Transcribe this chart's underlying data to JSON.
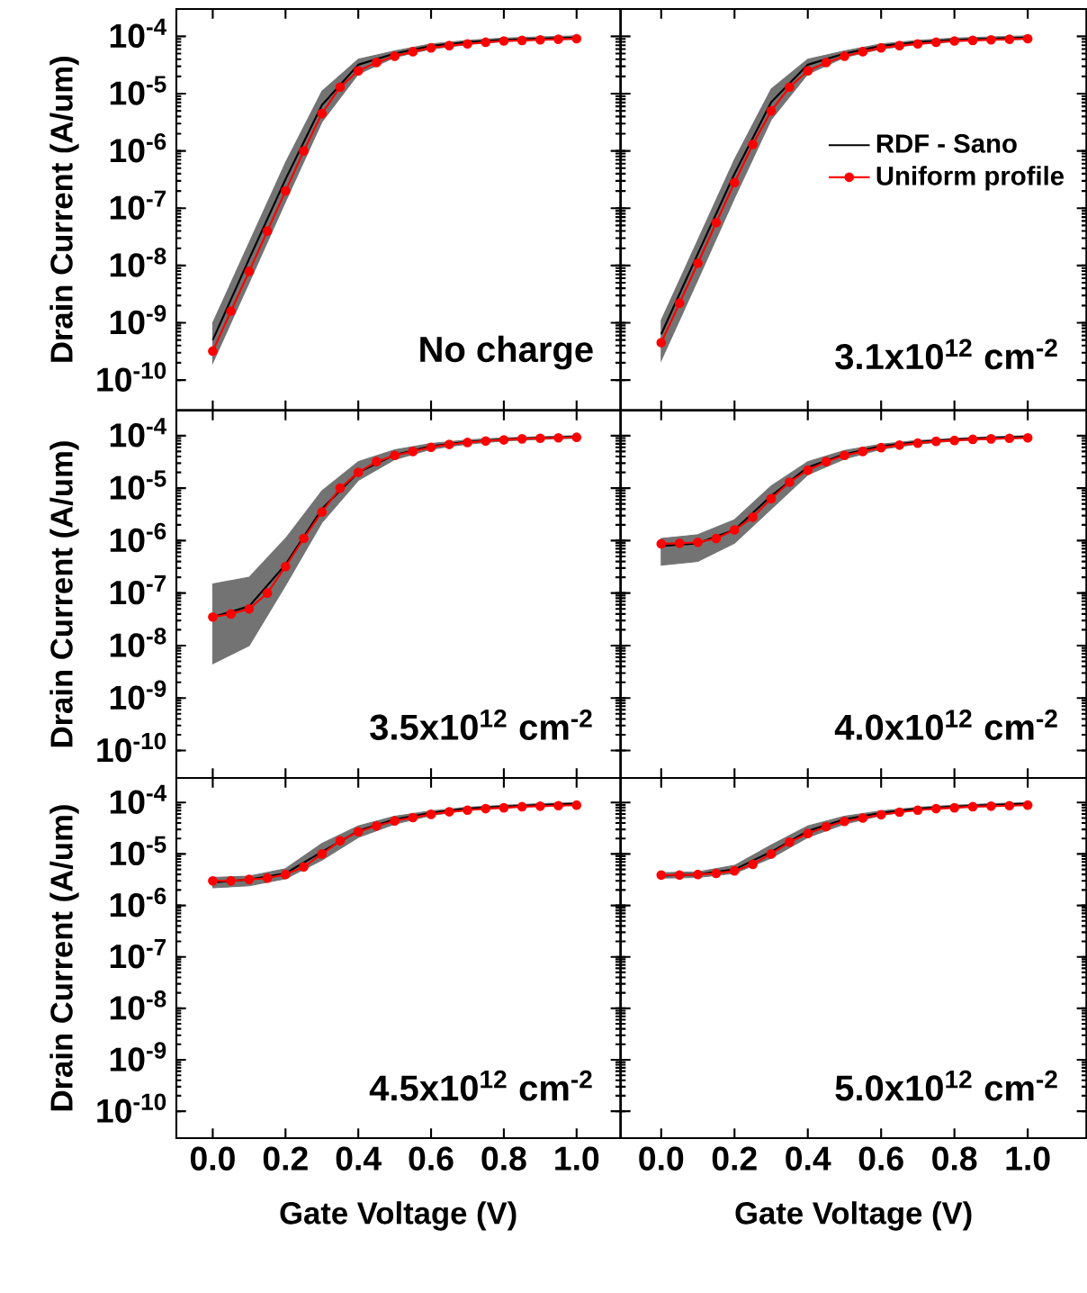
{
  "chart_data": [
    {
      "type": "line",
      "title": "No charge",
      "ylabel": "Drain Current (A/um)",
      "log": "y",
      "tick_labels": "y",
      "xlim": [
        -0.1,
        1.12
      ],
      "ylim": [
        3e-11,
        0.0003
      ],
      "xticks": [
        0,
        0.2,
        0.4,
        0.6,
        0.8,
        1
      ],
      "yticks": [
        {
          "value": 1e-10,
          "label": "10$^{-10}$"
        },
        {
          "value": 1e-09,
          "label": "10$^{-9}$"
        },
        {
          "value": 1e-08,
          "label": "10$^{-8}$"
        },
        {
          "value": 1e-07,
          "label": "10$^{-7}$"
        },
        {
          "value": 1e-06,
          "label": "10$^{-6}$"
        },
        {
          "value": 1e-05,
          "label": "10$^{-5}$"
        },
        {
          "value": 0.0001,
          "label": "10$^{-4}$"
        }
      ],
      "series": [
        {
          "color": "#000000",
          "marker": "none",
          "x": [
            0,
            0.1,
            0.2,
            0.3,
            0.4,
            0.5,
            0.6,
            0.7,
            0.8,
            0.9,
            1.0
          ],
          "values": [
            5e-10,
            1.3e-08,
            3.2e-07,
            6.3e-06,
            3.2e-05,
            5e-05,
            6.8e-05,
            7.9e-05,
            8.7e-05,
            9.1e-05,
            9.5e-05
          ],
          "upper": [
            1e-09,
            2.5e-08,
            6.3e-07,
            1.1e-05,
            4e-05,
            5.6e-05,
            7.4e-05,
            8.5e-05,
            9.3e-05,
            9.8e-05,
            0.000102
          ],
          "lower": [
            2e-10,
            5e-09,
            1.3e-07,
            3.2e-06,
            2.2e-05,
            4.3e-05,
            6e-05,
            7.2e-05,
            8.1e-05,
            8.7e-05,
            8.9e-05
          ]
        },
        {
          "color": "#ff0000",
          "marker": "circle",
          "x": [
            0,
            0.05,
            0.1,
            0.15,
            0.2,
            0.25,
            0.3,
            0.35,
            0.4,
            0.45,
            0.5,
            0.55,
            0.6,
            0.65,
            0.7,
            0.75,
            0.8,
            0.85,
            0.9,
            0.95,
            1.0
          ],
          "values": [
            3.2e-10,
            1.6e-09,
            7.9e-09,
            4e-08,
            2e-07,
            1e-06,
            4.5e-06,
            1.3e-05,
            2.5e-05,
            3.5e-05,
            4.5e-05,
            5.4e-05,
            6.3e-05,
            6.9e-05,
            7.4e-05,
            7.9e-05,
            8.3e-05,
            8.5e-05,
            8.7e-05,
            8.9e-05,
            9.1e-05
          ]
        }
      ]
    },
    {
      "type": "line",
      "title": "3.1x10$^{12}$ cm$^{-2}$",
      "log": "y",
      "tick_labels": false,
      "legend": "right",
      "xlim": [
        -0.11,
        1.16
      ],
      "ylim": [
        3e-11,
        0.0003
      ],
      "xticks": [
        0,
        0.2,
        0.4,
        0.6,
        0.8,
        1
      ],
      "yticks": [
        1e-10,
        1e-09,
        1e-08,
        1e-07,
        1e-06,
        1e-05,
        0.0001
      ],
      "series": [
        {
          "name": "RDF - Sano",
          "color": "#000000",
          "marker": "none",
          "x": [
            0,
            0.1,
            0.2,
            0.3,
            0.4,
            0.5,
            0.6,
            0.7,
            0.8,
            0.9,
            1.0
          ],
          "values": [
            6.3e-10,
            1.6e-08,
            4e-07,
            7.1e-06,
            3.2e-05,
            5e-05,
            6.8e-05,
            7.9e-05,
            8.7e-05,
            9.1e-05,
            9.5e-05
          ],
          "upper": [
            1.1e-09,
            2.8e-08,
            7.1e-07,
            1.2e-05,
            4e-05,
            5.6e-05,
            7.4e-05,
            8.5e-05,
            9.3e-05,
            9.8e-05,
            0.000102
          ],
          "lower": [
            2.2e-10,
            5.6e-09,
            1.5e-07,
            3.5e-06,
            2.2e-05,
            4.3e-05,
            6e-05,
            7.2e-05,
            8.1e-05,
            8.7e-05,
            8.9e-05
          ]
        },
        {
          "name": "Uniform profile",
          "color": "#ff0000",
          "marker": "circle",
          "x": [
            0,
            0.05,
            0.1,
            0.15,
            0.2,
            0.25,
            0.3,
            0.35,
            0.4,
            0.45,
            0.5,
            0.55,
            0.6,
            0.65,
            0.7,
            0.75,
            0.8,
            0.85,
            0.9,
            0.95,
            1.0
          ],
          "values": [
            4.5e-10,
            2.2e-09,
            1.1e-08,
            5.6e-08,
            2.8e-07,
            1.3e-06,
            5e-06,
            1.3e-05,
            2.5e-05,
            3.5e-05,
            4.5e-05,
            5.4e-05,
            6.3e-05,
            6.9e-05,
            7.4e-05,
            7.9e-05,
            8.3e-05,
            8.5e-05,
            8.7e-05,
            8.9e-05,
            9.1e-05
          ]
        }
      ]
    },
    {
      "type": "line",
      "title": "3.5x10$^{12}$ cm$^{-2}$",
      "ylabel": "Drain Current (A/um)",
      "log": "y",
      "tick_labels": "y",
      "xlim": [
        -0.1,
        1.12
      ],
      "ylim": [
        3e-11,
        0.0003
      ],
      "xticks": [
        0,
        0.2,
        0.4,
        0.6,
        0.8,
        1
      ],
      "yticks": [
        {
          "value": 1e-10,
          "label": "10$^{-10}$"
        },
        {
          "value": 1e-09,
          "label": "10$^{-9}$"
        },
        {
          "value": 1e-08,
          "label": "10$^{-8}$"
        },
        {
          "value": 1e-07,
          "label": "10$^{-7}$"
        },
        {
          "value": 1e-06,
          "label": "10$^{-6}$"
        },
        {
          "value": 1e-05,
          "label": "10$^{-5}$"
        },
        {
          "value": 0.0001,
          "label": "10$^{-4}$"
        }
      ],
      "series": [
        {
          "color": "#000000",
          "marker": "none",
          "x": [
            0,
            0.1,
            0.2,
            0.3,
            0.4,
            0.5,
            0.6,
            0.7,
            0.8,
            0.9,
            1.0
          ],
          "values": [
            3.5e-08,
            5.6e-08,
            3.5e-07,
            4e-06,
            2e-05,
            4.3e-05,
            6.3e-05,
            7.6e-05,
            8.5e-05,
            9.1e-05,
            9.5e-05
          ],
          "upper": [
            1.5e-07,
            2e-07,
            1.1e-06,
            8.9e-06,
            3.2e-05,
            5.4e-05,
            7.1e-05,
            8.3e-05,
            9.1e-05,
            9.5e-05,
            0.0001
          ],
          "lower": [
            4.5e-09,
            1e-08,
            1.4e-07,
            2.2e-06,
            1.4e-05,
            3.5e-05,
            5.5e-05,
            6.9e-05,
            7.9e-05,
            8.5e-05,
            8.9e-05
          ]
        },
        {
          "color": "#ff0000",
          "marker": "circle",
          "x": [
            0,
            0.05,
            0.1,
            0.15,
            0.2,
            0.25,
            0.3,
            0.35,
            0.4,
            0.45,
            0.5,
            0.55,
            0.6,
            0.65,
            0.7,
            0.75,
            0.8,
            0.85,
            0.9,
            0.95,
            1.0
          ],
          "values": [
            3.5e-08,
            4e-08,
            5e-08,
            1e-07,
            3.2e-07,
            1.1e-06,
            3.5e-06,
            1e-05,
            2e-05,
            3.2e-05,
            4.2e-05,
            5e-05,
            6e-05,
            6.8e-05,
            7.4e-05,
            7.9e-05,
            8.3e-05,
            8.7e-05,
            8.9e-05,
            9.1e-05,
            9.3e-05
          ]
        }
      ]
    },
    {
      "type": "line",
      "title": "4.0x10$^{12}$ cm$^{-2}$",
      "log": "y",
      "tick_labels": false,
      "xlim": [
        -0.11,
        1.16
      ],
      "ylim": [
        3e-11,
        0.0003
      ],
      "xticks": [
        0,
        0.2,
        0.4,
        0.6,
        0.8,
        1
      ],
      "yticks": [
        1e-10,
        1e-09,
        1e-08,
        1e-07,
        1e-06,
        1e-05,
        0.0001
      ],
      "series": [
        {
          "color": "#000000",
          "marker": "none",
          "x": [
            0,
            0.1,
            0.2,
            0.3,
            0.4,
            0.5,
            0.6,
            0.7,
            0.8,
            0.9,
            1.0
          ],
          "values": [
            7.9e-07,
            8.9e-07,
            1.6e-06,
            7.1e-06,
            2.5e-05,
            4.4e-05,
            6.3e-05,
            7.6e-05,
            8.5e-05,
            9.1e-05,
            9.5e-05
          ],
          "upper": [
            1.1e-06,
            1.3e-06,
            2.5e-06,
            1.1e-05,
            3.2e-05,
            5.2e-05,
            6.9e-05,
            8.1e-05,
            8.9e-05,
            9.5e-05,
            0.0001
          ],
          "lower": [
            3.4e-07,
            4e-07,
            8.9e-07,
            4e-06,
            1.8e-05,
            3.6e-05,
            5.5e-05,
            6.9e-05,
            7.9e-05,
            8.5e-05,
            8.9e-05
          ]
        },
        {
          "color": "#ff0000",
          "marker": "circle",
          "x": [
            0,
            0.05,
            0.1,
            0.15,
            0.2,
            0.25,
            0.3,
            0.35,
            0.4,
            0.45,
            0.5,
            0.55,
            0.6,
            0.65,
            0.7,
            0.75,
            0.8,
            0.85,
            0.9,
            0.95,
            1.0
          ],
          "values": [
            8.7e-07,
            8.9e-07,
            9.3e-07,
            1.1e-06,
            1.6e-06,
            2.8e-06,
            6.3e-06,
            1.3e-05,
            2.2e-05,
            3.2e-05,
            4.2e-05,
            5e-05,
            5.9e-05,
            6.6e-05,
            7.2e-05,
            7.8e-05,
            8.1e-05,
            8.5e-05,
            8.7e-05,
            8.9e-05,
            9.1e-05
          ]
        }
      ]
    },
    {
      "type": "line",
      "title": "4.5x10$^{12}$ cm$^{-2}$",
      "xlabel": "Gate Voltage (V)",
      "ylabel": "Drain Current (A/um)",
      "log": "y",
      "xlim": [
        -0.1,
        1.12
      ],
      "ylim": [
        3e-11,
        0.0003
      ],
      "xticks": [
        {
          "value": 0,
          "label": "0.0"
        },
        {
          "value": 0.2,
          "label": "0.2"
        },
        {
          "value": 0.4,
          "label": "0.4"
        },
        {
          "value": 0.6,
          "label": "0.6"
        },
        {
          "value": 0.8,
          "label": "0.8"
        },
        {
          "value": 1,
          "label": "1.0"
        }
      ],
      "yticks": [
        {
          "value": 1e-10,
          "label": "10$^{-10}$"
        },
        {
          "value": 1e-09,
          "label": "10$^{-9}$"
        },
        {
          "value": 1e-08,
          "label": "10$^{-8}$"
        },
        {
          "value": 1e-07,
          "label": "10$^{-7}$"
        },
        {
          "value": 1e-06,
          "label": "10$^{-6}$"
        },
        {
          "value": 1e-05,
          "label": "10$^{-5}$"
        },
        {
          "value": 0.0001,
          "label": "10$^{-4}$"
        }
      ],
      "series": [
        {
          "color": "#000000",
          "marker": "none",
          "x": [
            0,
            0.1,
            0.2,
            0.3,
            0.4,
            0.5,
            0.6,
            0.7,
            0.8,
            0.9,
            1.0
          ],
          "values": [
            2.8e-06,
            3.2e-06,
            4.2e-06,
            1.1e-05,
            2.8e-05,
            4.7e-05,
            6.3e-05,
            7.6e-05,
            8.3e-05,
            8.9e-05,
            9.5e-05
          ],
          "upper": [
            3.5e-06,
            3.7e-06,
            5.2e-06,
            1.6e-05,
            3.5e-05,
            5.4e-05,
            6.9e-05,
            8.1e-05,
            8.9e-05,
            9.5e-05,
            0.0001
          ],
          "lower": [
            2.2e-06,
            2.4e-06,
            3.3e-06,
            7.6e-06,
            2.1e-05,
            3.8e-05,
            5.6e-05,
            7.1e-05,
            7.9e-05,
            8.5e-05,
            8.9e-05
          ]
        },
        {
          "color": "#ff0000",
          "marker": "circle",
          "x": [
            0,
            0.05,
            0.1,
            0.15,
            0.2,
            0.25,
            0.3,
            0.35,
            0.4,
            0.45,
            0.5,
            0.55,
            0.6,
            0.65,
            0.7,
            0.75,
            0.8,
            0.85,
            0.9,
            0.95,
            1.0
          ],
          "values": [
            3e-06,
            3e-06,
            3.2e-06,
            3.4e-06,
            4e-06,
            5.6e-06,
            1e-05,
            1.8e-05,
            2.7e-05,
            3.5e-05,
            4.4e-05,
            5.1e-05,
            5.9e-05,
            6.6e-05,
            7.1e-05,
            7.6e-05,
            7.9e-05,
            8.3e-05,
            8.5e-05,
            8.7e-05,
            8.9e-05
          ]
        }
      ]
    },
    {
      "type": "line",
      "title": "5.0x10$^{12}$ cm$^{-2}$",
      "xlabel": "Gate Voltage (V)",
      "log": "y",
      "tick_labels": "x",
      "xlim": [
        -0.11,
        1.16
      ],
      "ylim": [
        3e-11,
        0.0003
      ],
      "xticks": [
        {
          "value": 0,
          "label": "0.0"
        },
        {
          "value": 0.2,
          "label": "0.2"
        },
        {
          "value": 0.4,
          "label": "0.4"
        },
        {
          "value": 0.6,
          "label": "0.6"
        },
        {
          "value": 0.8,
          "label": "0.8"
        },
        {
          "value": 1,
          "label": "1.0"
        }
      ],
      "yticks": [
        1e-10,
        1e-09,
        1e-08,
        1e-07,
        1e-06,
        1e-05,
        0.0001
      ],
      "series": [
        {
          "color": "#000000",
          "marker": "none",
          "x": [
            0,
            0.1,
            0.2,
            0.3,
            0.4,
            0.5,
            0.6,
            0.7,
            0.8,
            0.9,
            1.0
          ],
          "values": [
            3.8e-06,
            4e-06,
            5e-06,
            1.1e-05,
            2.8e-05,
            4.7e-05,
            6.3e-05,
            7.6e-05,
            8.3e-05,
            8.9e-05,
            9.5e-05
          ],
          "upper": [
            4.3e-06,
            4.5e-06,
            6e-06,
            1.5e-05,
            3.5e-05,
            5.4e-05,
            6.9e-05,
            8.1e-05,
            8.9e-05,
            9.5e-05,
            0.0001
          ],
          "lower": [
            3.4e-06,
            3.5e-06,
            4.2e-06,
            8.3e-06,
            2.1e-05,
            3.8e-05,
            5.6e-05,
            7.1e-05,
            7.9e-05,
            8.5e-05,
            8.9e-05
          ]
        },
        {
          "color": "#ff0000",
          "marker": "circle",
          "x": [
            0,
            0.05,
            0.1,
            0.15,
            0.2,
            0.25,
            0.3,
            0.35,
            0.4,
            0.45,
            0.5,
            0.55,
            0.6,
            0.65,
            0.7,
            0.75,
            0.8,
            0.85,
            0.9,
            0.95,
            1.0
          ],
          "values": [
            3.9e-06,
            3.9e-06,
            4e-06,
            4.2e-06,
            4.7e-06,
            6.3e-06,
            1e-05,
            1.7e-05,
            2.5e-05,
            3.4e-05,
            4.3e-05,
            5e-05,
            5.8e-05,
            6.5e-05,
            7.1e-05,
            7.6e-05,
            7.9e-05,
            8.3e-05,
            8.5e-05,
            8.7e-05,
            8.9e-05
          ]
        }
      ]
    }
  ]
}
